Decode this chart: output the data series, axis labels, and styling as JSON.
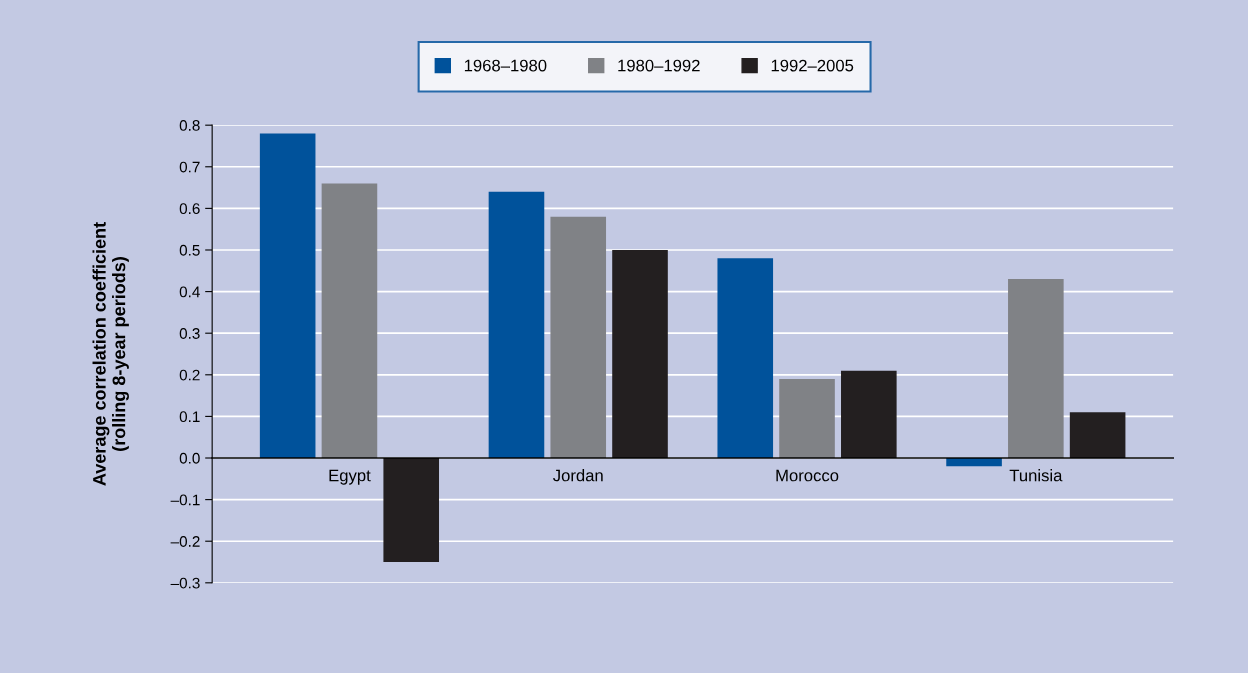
{
  "chart_data": {
    "type": "bar",
    "ylabel": "Average correlation coefficient\n(rolling 8-year periods)",
    "categories": [
      "Egypt",
      "Jordan",
      "Morocco",
      "Tunisia"
    ],
    "series": [
      {
        "name": "1968–1980",
        "color": "#00529b",
        "values": [
          0.78,
          0.64,
          0.48,
          -0.02
        ]
      },
      {
        "name": "1980–1992",
        "color": "#808286",
        "values": [
          0.66,
          0.58,
          0.19,
          0.43
        ]
      },
      {
        "name": "1992–2005",
        "color": "#231f20",
        "values": [
          -0.25,
          0.5,
          0.21,
          0.11
        ]
      }
    ],
    "ylim": [
      -0.3,
      0.8
    ],
    "yticks": [
      {
        "value": -0.3,
        "label": "–0.3"
      },
      {
        "value": -0.2,
        "label": "–0.2"
      },
      {
        "value": -0.1,
        "label": "–0.1"
      },
      {
        "value": 0,
        "label": "0.0"
      },
      {
        "value": 0.1,
        "label": "0.1"
      },
      {
        "value": 0.2,
        "label": "0.2"
      },
      {
        "value": 0.3,
        "label": "0.3"
      },
      {
        "value": 0.4,
        "label": "0.4"
      },
      {
        "value": 0.5,
        "label": "0.5"
      },
      {
        "value": 0.6,
        "label": "0.6"
      },
      {
        "value": 0.7,
        "label": "0.7"
      },
      {
        "value": 0.8,
        "label": "0.8"
      }
    ],
    "grid": "y",
    "legend": "top"
  }
}
